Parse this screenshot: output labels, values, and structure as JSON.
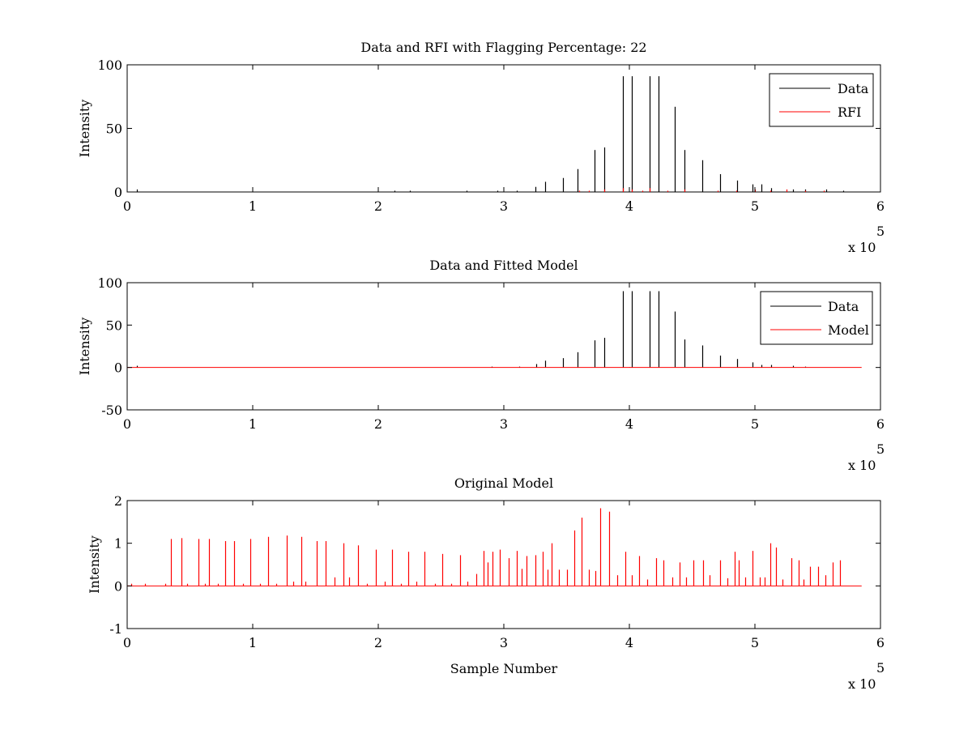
{
  "colors": {
    "data": "#000000",
    "red": "#ff0000",
    "axes": "#000000"
  },
  "chart_data": [
    {
      "type": "line",
      "title": "Data and RFI with Flagging Percentage: 22",
      "xlabel": "",
      "ylabel": "Intensity",
      "xlim": [
        0,
        600000
      ],
      "ylim": [
        0,
        100
      ],
      "xticks": [
        0,
        1,
        2,
        3,
        4,
        5,
        6
      ],
      "yticks": [
        0,
        50,
        100
      ],
      "x_multiplier_base": "x 10",
      "x_multiplier_exp": "5",
      "legend_position": "top-right",
      "series": [
        {
          "name": "Data",
          "color": "#000000",
          "style": "spikes",
          "baseline_end": 585000,
          "x": [
            8000,
            213000,
            225000,
            270000,
            295000,
            310000,
            325000,
            333000,
            347000,
            359000,
            372000,
            380000,
            395000,
            402000,
            416000,
            423000,
            436000,
            444000,
            458000,
            472000,
            486000,
            498000,
            505000,
            513000,
            530000,
            540000,
            557000,
            570000
          ],
          "values": [
            2,
            1,
            1,
            1,
            1,
            1,
            4,
            8,
            11,
            18,
            33,
            35,
            91,
            91,
            91,
            91,
            67,
            33,
            25,
            14,
            9,
            6,
            6,
            3,
            2,
            2,
            2,
            1
          ]
        },
        {
          "name": "RFI",
          "color": "#ff0000",
          "style": "spikes",
          "x": [
            360000,
            368000,
            380000,
            395000,
            402000,
            410000,
            416000,
            430000,
            444000,
            470000,
            485000,
            500000,
            512000,
            525000,
            540000,
            555000
          ],
          "values": [
            1,
            1,
            2,
            3,
            2,
            1,
            3,
            1,
            2,
            1,
            1,
            2,
            1,
            2,
            1,
            1
          ]
        }
      ]
    },
    {
      "type": "line",
      "title": "Data and Fitted Model",
      "xlabel": "",
      "ylabel": "Intensity",
      "xlim": [
        0,
        600000
      ],
      "ylim": [
        -50,
        100
      ],
      "xticks": [
        0,
        1,
        2,
        3,
        4,
        5,
        6
      ],
      "yticks": [
        -50,
        0,
        50,
        100
      ],
      "x_multiplier_base": "x 10",
      "x_multiplier_exp": "5",
      "legend_position": "top-right",
      "series": [
        {
          "name": "Data",
          "color": "#000000",
          "style": "spikes",
          "x": [
            8000,
            290000,
            312000,
            326000,
            333000,
            347000,
            359000,
            372000,
            380000,
            395000,
            402000,
            416000,
            423000,
            436000,
            444000,
            458000,
            472000,
            486000,
            498000,
            505000,
            513000,
            530000,
            540000
          ],
          "values": [
            2,
            1,
            1,
            4,
            8,
            11,
            18,
            32,
            35,
            90,
            90,
            90,
            90,
            66,
            33,
            26,
            14,
            10,
            6,
            3,
            3,
            2,
            1
          ]
        },
        {
          "name": "Model",
          "color": "#ff0000",
          "style": "spikes",
          "baseline_end": 585000,
          "x": [
            400000,
            416000,
            436000
          ],
          "values": [
            0.5,
            0.5,
            0.5
          ]
        }
      ]
    },
    {
      "type": "line",
      "title": "Original Model",
      "xlabel": "Sample Number",
      "ylabel": "Intensity",
      "xlim": [
        0,
        600000
      ],
      "ylim": [
        -1,
        2
      ],
      "xticks": [
        0,
        1,
        2,
        3,
        4,
        5,
        6
      ],
      "yticks": [
        -1,
        0,
        1,
        2
      ],
      "x_multiplier_base": "x 10",
      "x_multiplier_exp": "5",
      "legend_position": "none",
      "series": [
        {
          "color": "#ff0000",
          "style": "spikes",
          "baseline_end": 585000,
          "x": [
            3000,
            14000,
            30000,
            35000,
            43000,
            48000,
            57000,
            62000,
            65000,
            72000,
            78000,
            85000,
            92000,
            98000,
            106000,
            112000,
            119000,
            127000,
            132000,
            139000,
            142000,
            151000,
            158000,
            165000,
            172000,
            177000,
            184000,
            191000,
            198000,
            205000,
            211000,
            218000,
            224000,
            230000,
            237000,
            245000,
            251000,
            258000,
            265000,
            271000,
            278000,
            284000,
            287000,
            291000,
            297000,
            304000,
            310000,
            314000,
            318000,
            325000,
            331000,
            335000,
            338000,
            344000,
            350000,
            356000,
            362000,
            368000,
            373000,
            377000,
            384000,
            390000,
            397000,
            402000,
            408000,
            414000,
            421000,
            427000,
            434000,
            440000,
            445000,
            451000,
            459000,
            464000,
            472000,
            478000,
            484000,
            487000,
            492000,
            498000,
            504000,
            508000,
            512000,
            517000,
            522000,
            529000,
            535000,
            539000,
            544000,
            550000,
            556000,
            562000,
            568000
          ],
          "values": [
            0.05,
            0.05,
            0.05,
            1.1,
            1.12,
            0.05,
            1.1,
            0.05,
            1.1,
            0.05,
            1.05,
            1.05,
            0.05,
            1.1,
            0.05,
            1.15,
            0.05,
            1.18,
            0.1,
            1.15,
            0.1,
            1.05,
            1.05,
            0.2,
            1.0,
            0.2,
            0.95,
            0.05,
            0.85,
            0.1,
            0.85,
            0.05,
            0.8,
            0.1,
            0.8,
            0.05,
            0.75,
            0.05,
            0.72,
            0.1,
            0.28,
            0.82,
            0.55,
            0.8,
            0.85,
            0.65,
            0.82,
            0.4,
            0.7,
            0.72,
            0.8,
            0.38,
            1.0,
            0.38,
            0.38,
            1.3,
            1.6,
            0.38,
            0.35,
            1.82,
            1.74,
            0.25,
            0.8,
            0.25,
            0.7,
            0.15,
            0.65,
            0.6,
            0.2,
            0.55,
            0.2,
            0.6,
            0.6,
            0.25,
            0.6,
            0.18,
            0.8,
            0.6,
            0.2,
            0.82,
            0.2,
            0.2,
            1.0,
            0.9,
            0.15,
            0.65,
            0.6,
            0.15,
            0.45,
            0.45,
            0.25,
            0.55,
            0.6
          ]
        }
      ]
    }
  ]
}
